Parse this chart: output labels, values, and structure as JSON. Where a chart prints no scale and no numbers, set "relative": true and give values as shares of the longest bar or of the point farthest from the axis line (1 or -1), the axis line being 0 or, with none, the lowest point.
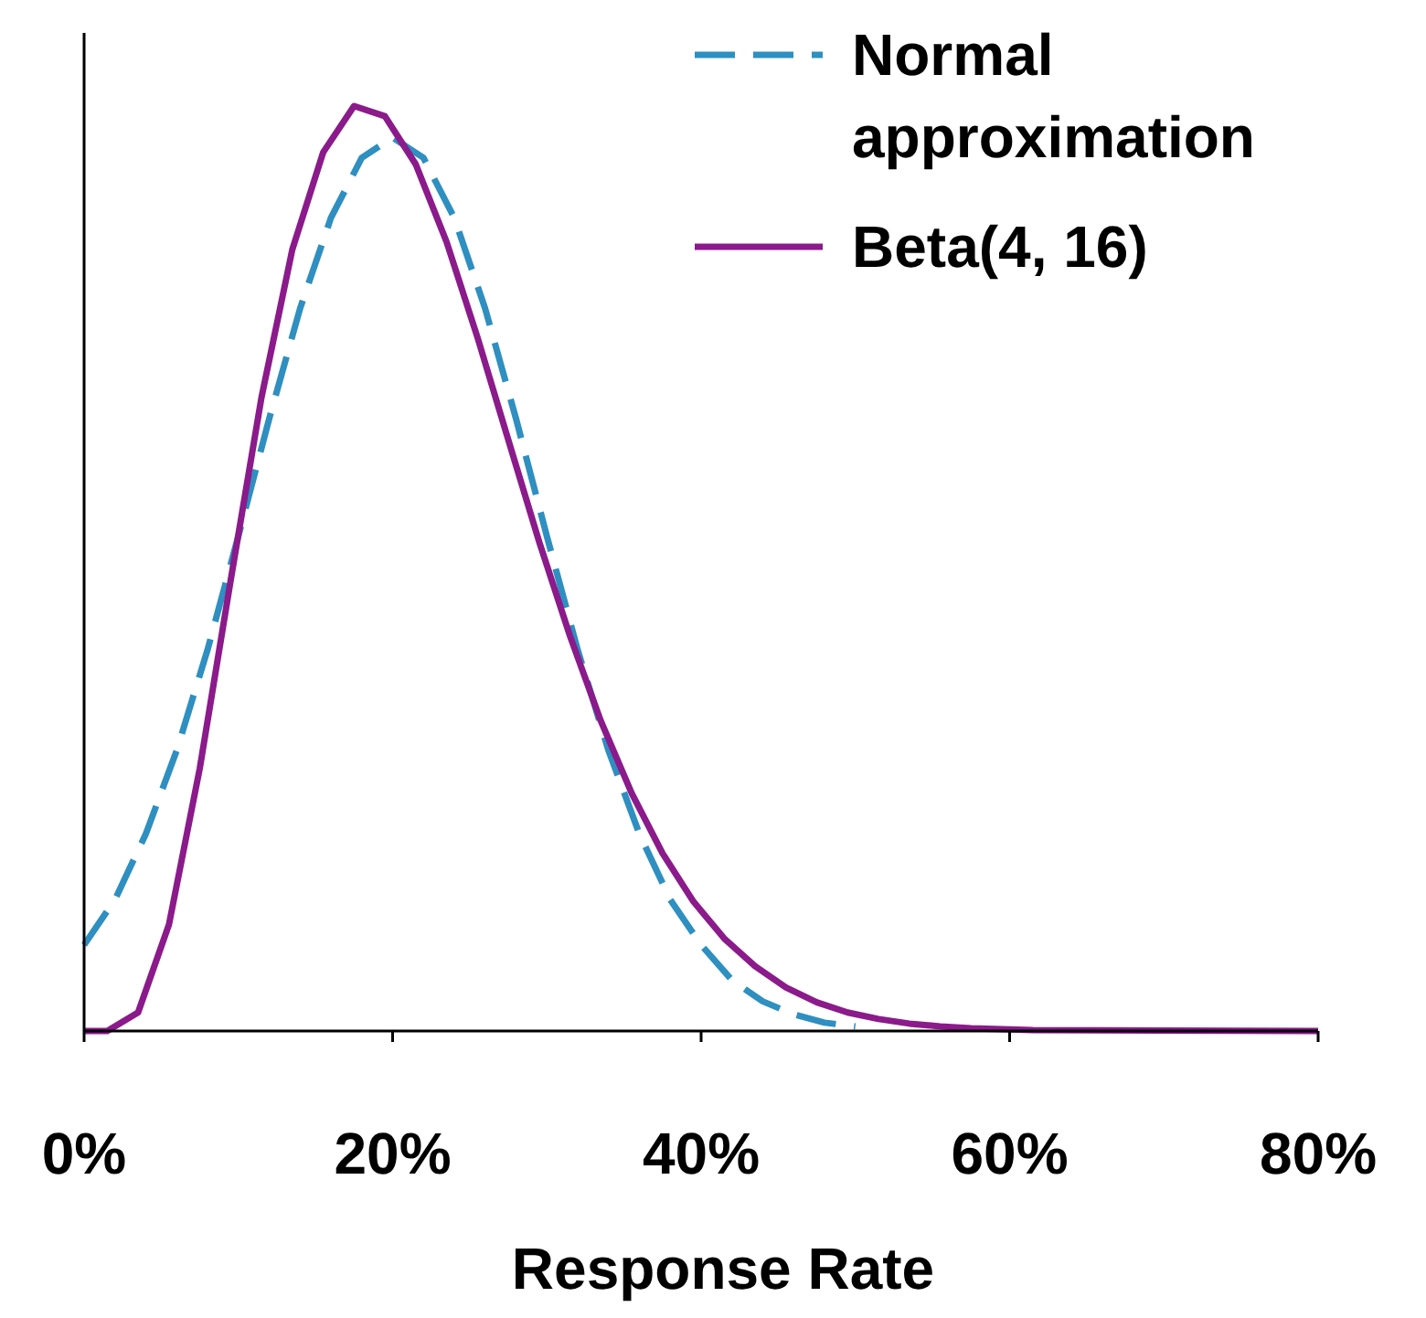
{
  "chart_data": {
    "type": "line",
    "relative": true,
    "xlabel": "Response Rate",
    "xlim": [
      0,
      80
    ],
    "xticks": [
      {
        "value": 0,
        "label": "0%"
      },
      {
        "value": 20,
        "label": "20%"
      },
      {
        "value": 40,
        "label": "40%"
      },
      {
        "value": 60,
        "label": "60%"
      },
      {
        "value": 80,
        "label": "80%"
      }
    ],
    "legend": "top right",
    "series": [
      {
        "name": "Normal approximation",
        "color": "#2e8fc0",
        "line_style": "dashed",
        "x": [
          0,
          2,
          4,
          6,
          8,
          10,
          12,
          14,
          16,
          18,
          20,
          22,
          24,
          26,
          28,
          30,
          32,
          34,
          36,
          38,
          40,
          42,
          44,
          46,
          48,
          50
        ],
        "values": [
          0.093,
          0.142,
          0.213,
          0.303,
          0.412,
          0.535,
          0.662,
          0.781,
          0.879,
          0.944,
          0.966,
          0.944,
          0.879,
          0.781,
          0.662,
          0.535,
          0.412,
          0.303,
          0.213,
          0.142,
          0.093,
          0.055,
          0.032,
          0.018,
          0.009,
          0.005
        ]
      },
      {
        "name": "Beta(4, 16)",
        "color": "#8b1a8b",
        "line_style": "solid",
        "x": [
          0,
          1.5,
          3.5,
          5.5,
          7.5,
          9.5,
          11.5,
          13.5,
          15.5,
          17.5,
          19.5,
          21.5,
          23.5,
          25.5,
          27.5,
          29.5,
          31.5,
          33.5,
          35.5,
          37.5,
          39.5,
          41.5,
          43.5,
          45.5,
          47.5,
          49.5,
          51.5,
          53.5,
          55.5,
          57.5,
          59.5,
          61.5,
          80
        ],
        "values": [
          0,
          0,
          0.02,
          0.115,
          0.284,
          0.487,
          0.685,
          0.845,
          0.95,
          1,
          0.989,
          0.937,
          0.853,
          0.75,
          0.639,
          0.529,
          0.427,
          0.335,
          0.257,
          0.192,
          0.14,
          0.1,
          0.07,
          0.047,
          0.031,
          0.02,
          0.013,
          0.008,
          0.005,
          0.003,
          0.002,
          0.001,
          0
        ]
      }
    ]
  }
}
